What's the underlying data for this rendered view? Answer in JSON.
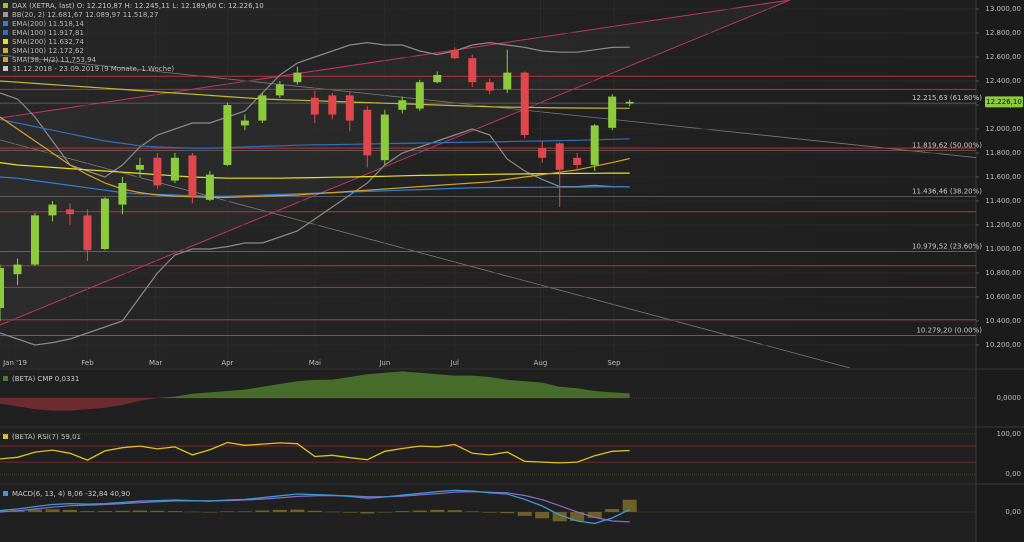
{
  "chart_data": {
    "type": "candlestick",
    "legend": [
      {
        "text": "DAX (XETRA, last)   O: 12.210,87   H: 12.245,11   L: 12.189,60   C: 12.226,10",
        "color": "#8ccc3c"
      },
      {
        "text": "BB(20, 2)   12.681,67   12.089,97   11.518,27",
        "color": "#9a9a9a"
      },
      {
        "text": "EMA(200)   11.518,14",
        "color": "#2f7fd8"
      },
      {
        "text": "EMA(100)   11.917,81",
        "color": "#2f6fc0"
      },
      {
        "text": "SMA(200)   11.632,74",
        "color": "#e8e020"
      },
      {
        "text": "SMA(100)   12.172,62",
        "color": "#c8b830"
      },
      {
        "text": "SMA(38, H/2)   11.753,94",
        "color": "#d9a028"
      },
      {
        "text": "31.12.2018 - 23.09.2019   (9 Monate, 1 Woche)",
        "color": "#c8c8c8"
      }
    ],
    "x": [
      0,
      1,
      2,
      3,
      4,
      5,
      6,
      7,
      8,
      9,
      10,
      11,
      12,
      13,
      14,
      15,
      16,
      17,
      18,
      19,
      20,
      21,
      22,
      23,
      24,
      25,
      26,
      27,
      28,
      29,
      30,
      31,
      32,
      33,
      34,
      35,
      36
    ],
    "open": [
      10508,
      10790,
      10870,
      11280,
      11330,
      11280,
      11000,
      11370,
      11660,
      11760,
      11570,
      11780,
      11410,
      11700,
      12030,
      12070,
      12280,
      12390,
      12260,
      12280,
      12280,
      12160,
      11740,
      12160,
      12170,
      12390,
      12660,
      12590,
      12390,
      12330,
      12470,
      11840,
      11880,
      11760,
      11700,
      12010,
      12210.87
    ],
    "high": [
      10870,
      10920,
      11300,
      11400,
      11380,
      11330,
      11430,
      11600,
      11760,
      11800,
      11800,
      11800,
      11650,
      12220,
      12120,
      12300,
      12400,
      12520,
      12320,
      12300,
      12310,
      12190,
      12160,
      12270,
      12410,
      12480,
      12680,
      12620,
      12420,
      12660,
      12480,
      11900,
      11890,
      11800,
      12040,
      12290,
      12245.11
    ],
    "low": [
      10400,
      10700,
      10860,
      11230,
      11200,
      10900,
      10990,
      11290,
      11600,
      11500,
      11550,
      11380,
      11400,
      11690,
      11990,
      12050,
      12260,
      12370,
      12050,
      12080,
      11980,
      11680,
      11700,
      12130,
      12150,
      12380,
      12580,
      12350,
      12290,
      12300,
      11920,
      11720,
      11350,
      11650,
      11650,
      11990,
      12189.6
    ],
    "close": [
      10842,
      10870,
      11280,
      11370,
      11290,
      10990,
      11420,
      11550,
      11700,
      11530,
      11760,
      11450,
      11620,
      12200,
      12070,
      12280,
      12370,
      12470,
      12120,
      12120,
      12070,
      11780,
      12120,
      12240,
      12390,
      12450,
      12590,
      12390,
      12320,
      12470,
      11950,
      11760,
      11660,
      11700,
      12030,
      12270,
      12226.1
    ],
    "up_color": "#8ccc3c",
    "down_color": "#e0474c",
    "overlays": [
      {
        "color": "#8a8a8a",
        "values": [
          12300,
          12250,
          12100,
          11900,
          11700,
          11650,
          11600,
          11700,
          11850,
          11950,
          12000,
          12050,
          12050,
          12100,
          12150,
          12300,
          12450,
          12550,
          12600,
          12650,
          12700,
          12720,
          12700,
          12700,
          12650,
          12620,
          12650,
          12700,
          12720,
          12700,
          12680,
          12650,
          12640,
          12640,
          12660,
          12680,
          12681.67
        ]
      },
      {
        "color": "#8a8a8a",
        "values": [
          10300,
          10250,
          10200,
          10220,
          10250,
          10300,
          10350,
          10400,
          10600,
          10800,
          10950,
          11000,
          11000,
          11020,
          11050,
          11050,
          11100,
          11150,
          11250,
          11350,
          11450,
          11550,
          11700,
          11800,
          11850,
          11900,
          11950,
          12000,
          11950,
          11750,
          11650,
          11580,
          11520,
          11520,
          11530,
          11520,
          11518.27
        ]
      },
      {
        "color": "#2f7fd8",
        "values": [
          11600,
          11590,
          11570,
          11550,
          11530,
          11510,
          11490,
          11470,
          11460,
          11455,
          11450,
          11445,
          11440,
          11440,
          11445,
          11450,
          11455,
          11460,
          11465,
          11470,
          11475,
          11480,
          11485,
          11490,
          11495,
          11500,
          11505,
          11510,
          11512,
          11512,
          11513,
          11514,
          11515,
          11516,
          11517,
          11518,
          11518.14
        ]
      },
      {
        "color": "#2f6fc0",
        "values": [
          12080,
          12050,
          12020,
          11990,
          11960,
          11930,
          11900,
          11880,
          11860,
          11850,
          11845,
          11840,
          11840,
          11845,
          11850,
          11855,
          11860,
          11865,
          11868,
          11870,
          11872,
          11875,
          11878,
          11880,
          11882,
          11885,
          11888,
          11890,
          11892,
          11895,
          11898,
          11900,
          11903,
          11906,
          11910,
          11914,
          11917.81
        ]
      },
      {
        "color": "#e8e020",
        "values": [
          11720,
          11700,
          11690,
          11680,
          11670,
          11660,
          11650,
          11640,
          11630,
          11620,
          11610,
          11600,
          11595,
          11590,
          11590,
          11590,
          11590,
          11592,
          11595,
          11598,
          11600,
          11603,
          11606,
          11610,
          11613,
          11616,
          11618,
          11620,
          11622,
          11624,
          11626,
          11628,
          11629,
          11630,
          11631,
          11632,
          11632.74
        ]
      },
      {
        "color": "#c8b830",
        "values": [
          12400,
          12390,
          12380,
          12370,
          12360,
          12350,
          12340,
          12330,
          12320,
          12310,
          12300,
          12290,
          12280,
          12270,
          12260,
          12250,
          12245,
          12240,
          12235,
          12230,
          12225,
          12220,
          12215,
          12210,
          12205,
          12200,
          12195,
          12190,
          12185,
          12182,
          12180,
          12178,
          12176,
          12175,
          12174,
          12173,
          12172.62
        ]
      },
      {
        "color": "#d9a028",
        "values": [
          12100,
          12000,
          11900,
          11800,
          11700,
          11620,
          11550,
          11500,
          11470,
          11450,
          11440,
          11435,
          11430,
          11430,
          11435,
          11440,
          11445,
          11450,
          11460,
          11470,
          11480,
          11490,
          11500,
          11510,
          11520,
          11530,
          11540,
          11550,
          11560,
          11580,
          11600,
          11620,
          11640,
          11660,
          11690,
          11720,
          11753.94
        ]
      }
    ],
    "xlim": [
      0,
      55.8
    ],
    "xticks": [
      {
        "value": 0.86,
        "label": "Jan '19"
      },
      {
        "value": 5,
        "label": "Feb"
      },
      {
        "value": 8.9,
        "label": "Mar"
      },
      {
        "value": 13,
        "label": "Apr"
      },
      {
        "value": 18,
        "label": "Mai"
      },
      {
        "value": 22,
        "label": "Jun"
      },
      {
        "value": 26,
        "label": "Jul"
      },
      {
        "value": 30.9,
        "label": "Aug"
      },
      {
        "value": 35.1,
        "label": "Sep"
      }
    ],
    "ylim": [
      10008,
      13075
    ],
    "yticks": [
      {
        "value": 10200,
        "label": "10.200,00"
      },
      {
        "value": 10400,
        "label": "10.400,00"
      },
      {
        "value": 10600,
        "label": "10.600,00"
      },
      {
        "value": 10800,
        "label": "10.800,00"
      },
      {
        "value": 11000,
        "label": "11.000,00"
      },
      {
        "value": 11200,
        "label": "11.200,00"
      },
      {
        "value": 11400,
        "label": "11.400,00"
      },
      {
        "value": 11600,
        "label": "11.600,00"
      },
      {
        "value": 11800,
        "label": "11.800,00"
      },
      {
        "value": 12000,
        "label": "12.000,00"
      },
      {
        "value": 12200,
        "label": "12.200,00"
      },
      {
        "value": 12400,
        "label": "12.400,00"
      },
      {
        "value": 12600,
        "label": "12.600,00"
      },
      {
        "value": 12800,
        "label": "12.800,00"
      },
      {
        "value": 13000,
        "label": "13.000,00"
      }
    ],
    "grid": true,
    "fibonacci": [
      {
        "value": 12215.63,
        "label": "12.215,63 (61.80%)"
      },
      {
        "value": 11819.62,
        "label": "11.819,62 (50.00%)"
      },
      {
        "value": 11436.46,
        "label": "11.436,46 (38.20%)"
      },
      {
        "value": 10979.52,
        "label": "10.979,52 (23.60%)"
      },
      {
        "value": 10279.2,
        "label": "10.279,20 (0.00%)"
      }
    ],
    "levels": {
      "color": "#b8323a",
      "values": [
        12440,
        12330,
        11840,
        11310,
        10860,
        10680,
        10410
      ]
    },
    "last_price": {
      "value": 12226.1,
      "label": "12.226,10",
      "color": "#8ccc3c"
    },
    "panels": [
      {
        "type": "area",
        "title": "(BETA) CMP  0,0331",
        "color": "#4e7a2e",
        "neg_color": "#7a2e32",
        "ylim": [
          -0.2,
          0.2
        ],
        "yticks": [
          {
            "value": 0,
            "label": "0,0000"
          }
        ],
        "values": [
          -0.04,
          -0.06,
          -0.08,
          -0.09,
          -0.09,
          -0.08,
          -0.07,
          -0.05,
          -0.02,
          0,
          0.01,
          0.03,
          0.04,
          0.05,
          0.06,
          0.08,
          0.1,
          0.12,
          0.13,
          0.13,
          0.15,
          0.17,
          0.18,
          0.19,
          0.18,
          0.17,
          0.16,
          0.16,
          0.15,
          0.13,
          0.12,
          0.11,
          0.08,
          0.07,
          0.05,
          0.04,
          0.0331
        ]
      },
      {
        "type": "line",
        "title": "(BETA) RSI(7)  59,01",
        "color": "#e0c020",
        "ylim": [
          -22,
          115
        ],
        "yticks": [
          {
            "value": 100,
            "label": "100,00"
          },
          {
            "value": 0,
            "label": "0,00"
          }
        ],
        "levels": [
          70,
          30
        ],
        "values": [
          38,
          42,
          55,
          60,
          52,
          35,
          58,
          66,
          70,
          63,
          68,
          48,
          61,
          79,
          72,
          75,
          78,
          76,
          44,
          47,
          41,
          36,
          57,
          64,
          70,
          68,
          74,
          52,
          48,
          55,
          32,
          30,
          28,
          30,
          46,
          57,
          59.01
        ]
      },
      {
        "type": "macd",
        "title": "MACD(6, 13, 4)  8,06  -32,84  40,90",
        "color": "#3a9ad8",
        "signal_color": "#8a6ad0",
        "hist_color": "#6e6028",
        "ylim": [
          -100,
          90
        ],
        "yticks": [
          {
            "value": 0,
            "label": "0,00"
          }
        ],
        "values": [
          5,
          10,
          18,
          25,
          28,
          26,
          28,
          32,
          36,
          38,
          40,
          38,
          36,
          40,
          42,
          48,
          54,
          60,
          58,
          56,
          52,
          46,
          50,
          56,
          62,
          68,
          72,
          70,
          64,
          60,
          42,
          20,
          -10,
          -30,
          -38,
          -20,
          8.06
        ],
        "signal": [
          0,
          4,
          10,
          16,
          21,
          23,
          25,
          28,
          31,
          34,
          37,
          37,
          37,
          38,
          40,
          43,
          47,
          52,
          54,
          55,
          54,
          51,
          51,
          53,
          57,
          61,
          66,
          68,
          66,
          64,
          55,
          41,
          21,
          0,
          -18,
          -30,
          -32.84
        ],
        "histogram": [
          5,
          6,
          8,
          9,
          7,
          3,
          3,
          4,
          5,
          4,
          3,
          1,
          -1,
          2,
          2,
          5,
          7,
          8,
          4,
          1,
          -2,
          -5,
          -1,
          3,
          5,
          7,
          6,
          2,
          -2,
          -4,
          -13,
          -21,
          -31,
          -30,
          -20,
          10,
          40.9
        ]
      }
    ]
  }
}
